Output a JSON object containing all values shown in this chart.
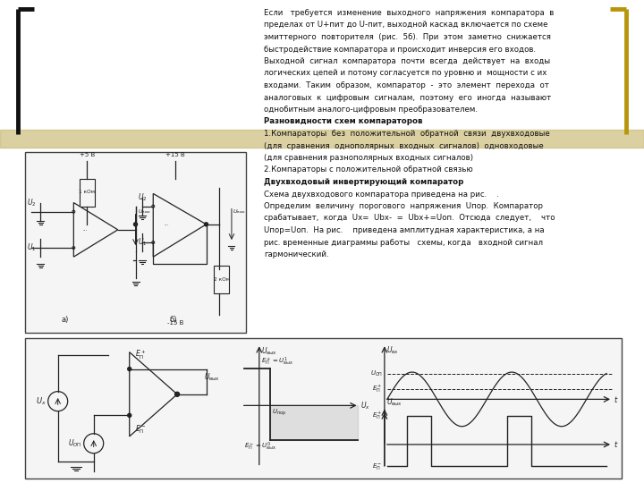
{
  "bg_color": "#ffffff",
  "bracket_left_color": "#000000",
  "bracket_right_color": "#b8960b",
  "stripe_color": "#c8b870",
  "text_color": "#111111",
  "circuit_color": "#222222",
  "text_lines": [
    [
      "normal",
      "Если   требуется  изменение  выходного  напряжения  компаратора  в"
    ],
    [
      "normal",
      "пределах от U+пит до U-пит, выходной каскад включается по схеме"
    ],
    [
      "normal",
      "эмиттерного  повторителя  (рис.  5б).  При  этом  заметно  снижается"
    ],
    [
      "normal",
      "быстродействие компаратора и происходит инверсия его входов."
    ],
    [
      "normal",
      "Выходной  сигнал  компаратора  почти  всегда  действует  на  входы"
    ],
    [
      "normal",
      "логических цепей и потому согласуется по уровню и  мощности с их"
    ],
    [
      "normal",
      "входами.  Таким  образом,  компаратор  -  это  элемент  перехода  от"
    ],
    [
      "normal",
      "аналоговых  к  цифровым  сигналам,  поэтому  его  иногда  называют"
    ],
    [
      "normal",
      "однобитным аналого-цифровым преобразователем."
    ],
    [
      "bold",
      "Разновидности схем компараторов"
    ],
    [
      "normal",
      "1.Компараторы  без  положительной  обратной  связи  двухвходовые"
    ],
    [
      "normal",
      "(для  сравнения  однополярных  входных  сигналов)  одновходовые"
    ],
    [
      "normal",
      "(для сравнения разнополярных входных сигналов)"
    ],
    [
      "normal",
      "2.Компараторы с положительной обратной связью"
    ],
    [
      "bold",
      "Двухвходовый инвертирующий компаратор"
    ],
    [
      "normal",
      "Схема двухвходового компаратора приведена на рис.    ."
    ],
    [
      "normal",
      "Определим  величину  порогового  напряжения  Uпор.  Компаратор"
    ],
    [
      "normal",
      "срабатывает,  когда  Ux=  Ubx-  =  Ubx+=Uоп.  Отсюда  следует,    что"
    ],
    [
      "normal",
      "Uпор=Uоп.  На рис.    приведена амплитудная характеристика, а на"
    ],
    [
      "normal",
      "рис. временные диаграммы работы   схемы, когда   входной сигнал"
    ],
    [
      "normal",
      "гармонический."
    ]
  ]
}
